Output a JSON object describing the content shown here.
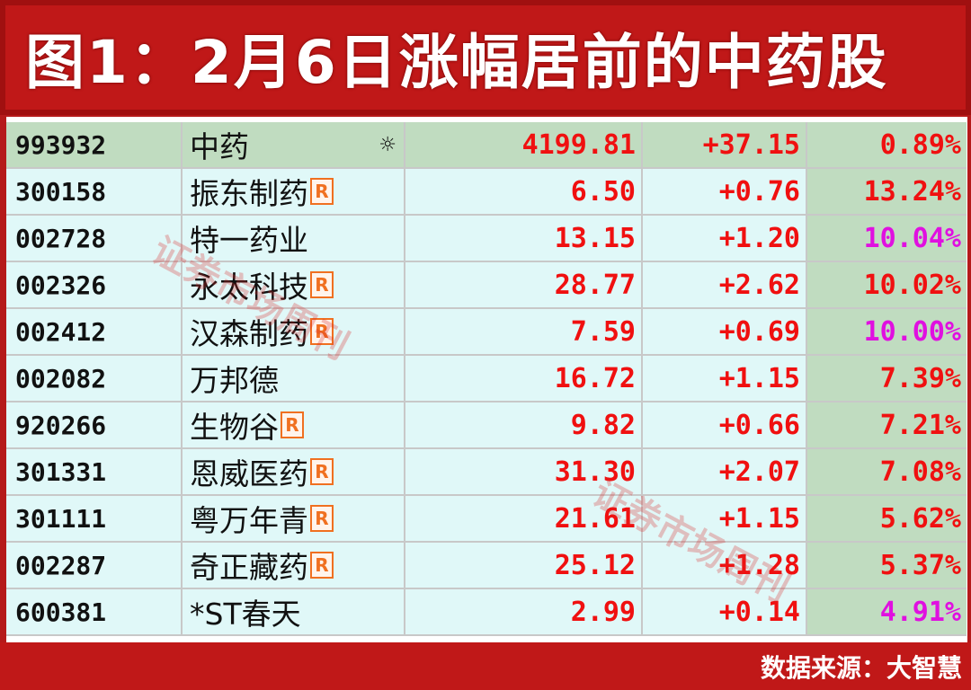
{
  "title": "图1：2月6日涨幅居前的中药股",
  "footer": "数据来源：大智慧",
  "watermark": "证券市场周刊",
  "colors": {
    "up": "#f01010",
    "limit_up": "#e010e0",
    "header_row_bg": "#c0dcc0",
    "row_bg": "#e0f8f8",
    "frame": "#c01818"
  },
  "rows": [
    {
      "code": "993932",
      "name": "中药",
      "icon": "sun-icon",
      "price": "4199.81",
      "change": "+37.15",
      "pct": "0.89%",
      "magenta": false,
      "index": true
    },
    {
      "code": "300158",
      "name": "振东制药",
      "badge": "R",
      "price": "6.50",
      "change": "+0.76",
      "pct": "13.24%",
      "magenta": false
    },
    {
      "code": "002728",
      "name": "特一药业",
      "price": "13.15",
      "change": "+1.20",
      "pct": "10.04%",
      "magenta": true
    },
    {
      "code": "002326",
      "name": "永太科技",
      "badge": "R",
      "price": "28.77",
      "change": "+2.62",
      "pct": "10.02%",
      "magenta": false
    },
    {
      "code": "002412",
      "name": "汉森制药",
      "badge": "R",
      "price": "7.59",
      "change": "+0.69",
      "pct": "10.00%",
      "magenta": true
    },
    {
      "code": "002082",
      "name": "万邦德",
      "price": "16.72",
      "change": "+1.15",
      "pct": "7.39%",
      "magenta": false
    },
    {
      "code": "920266",
      "name": "生物谷 ",
      "badge": "R",
      "price": "9.82",
      "change": "+0.66",
      "pct": "7.21%",
      "magenta": false
    },
    {
      "code": "301331",
      "name": "恩威医药",
      "badge": "R",
      "price": "31.30",
      "change": "+2.07",
      "pct": "7.08%",
      "magenta": false
    },
    {
      "code": "301111",
      "name": "粤万年青",
      "badge": "R",
      "price": "21.61",
      "change": "+1.15",
      "pct": "5.62%",
      "magenta": false
    },
    {
      "code": "002287",
      "name": "奇正藏药",
      "badge": "R",
      "price": "25.12",
      "change": "+1.28",
      "pct": "5.37%",
      "magenta": false
    },
    {
      "code": "600381",
      "name": "*ST春天",
      "price": "2.99",
      "change": "+0.14",
      "pct": "4.91%",
      "magenta": true
    }
  ]
}
